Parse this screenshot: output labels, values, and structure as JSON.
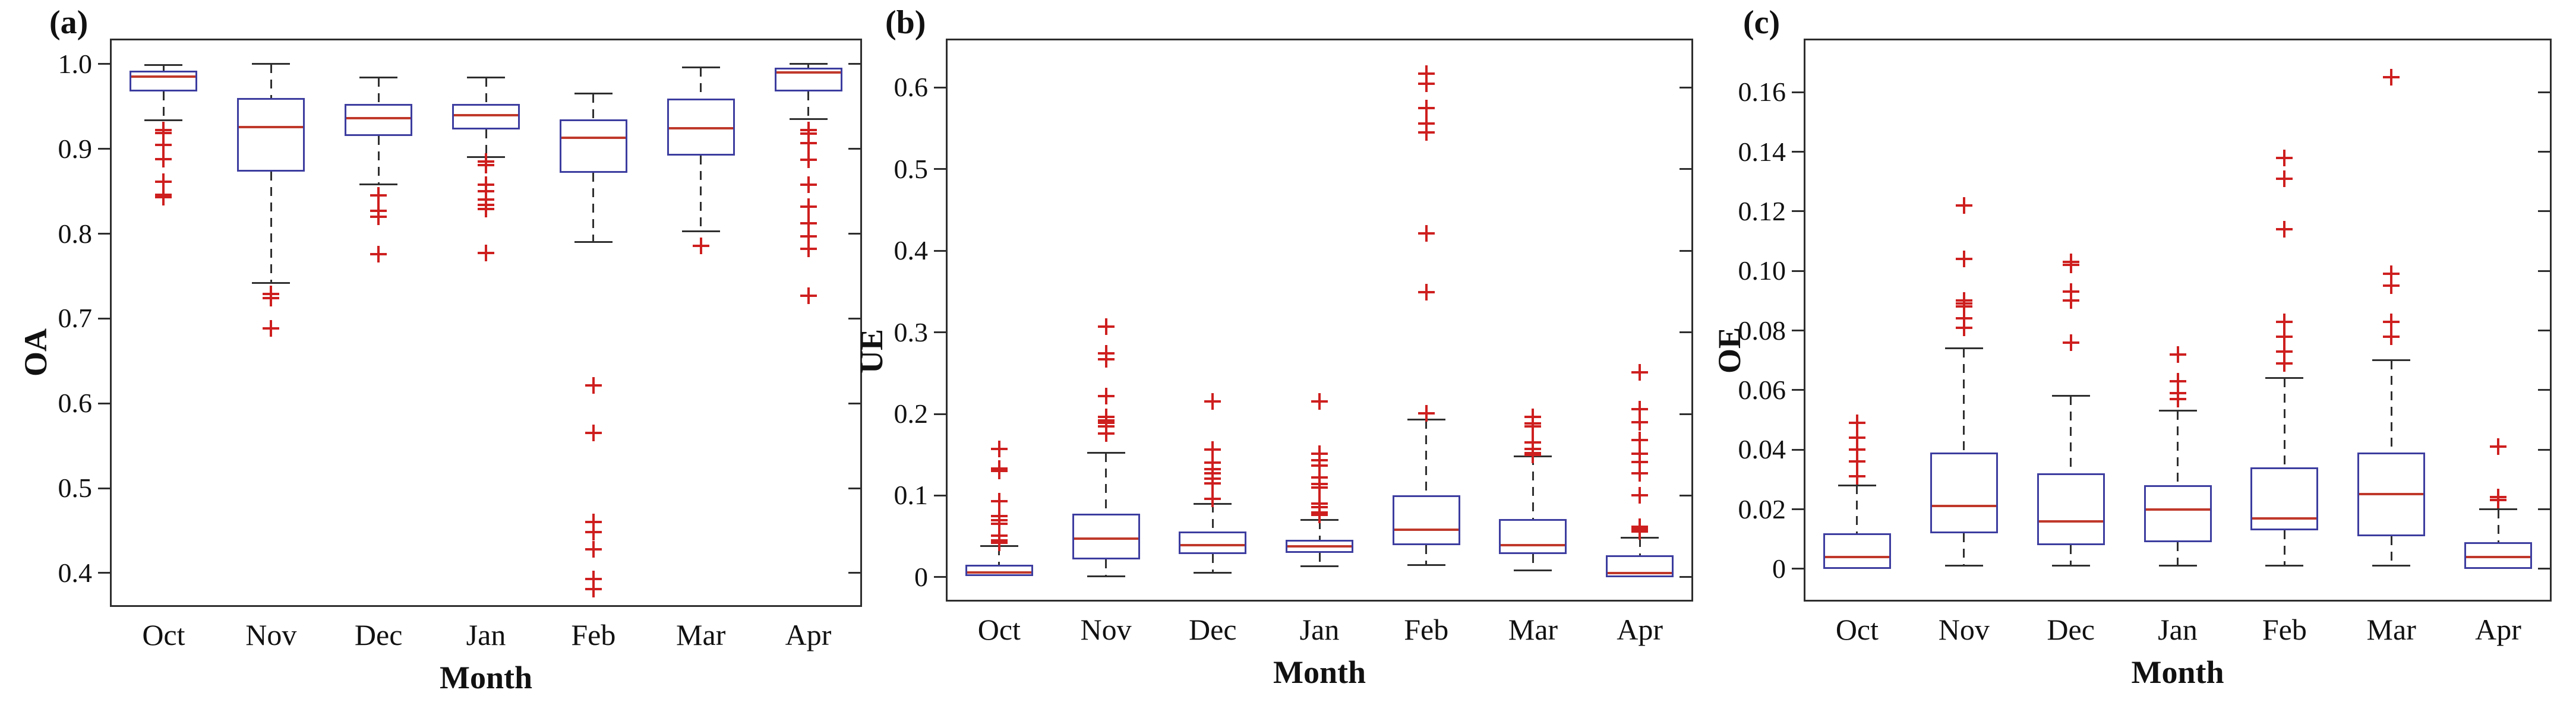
{
  "figure_title": "",
  "colors": {
    "box_edge": "#3d3da0",
    "median": "#c0392b",
    "outlier": "#ce1f1f",
    "axis": "#2e2e2e",
    "background": "#ffffff"
  },
  "chart_data": [
    {
      "type": "box",
      "panel_tag": "(a)",
      "xlabel": "Month",
      "ylabel": "OA",
      "ylim": [
        0.36,
        1.03
      ],
      "grid": false,
      "yticks": [
        {
          "v": 1.0,
          "label": "1.0"
        },
        {
          "v": 0.9,
          "label": "0.9"
        },
        {
          "v": 0.8,
          "label": "0.8"
        },
        {
          "v": 0.7,
          "label": "0.7"
        },
        {
          "v": 0.6,
          "label": "0.6"
        },
        {
          "v": 0.5,
          "label": "0.5"
        },
        {
          "v": 0.4,
          "label": "0.4"
        }
      ],
      "categories": [
        "Oct",
        "Nov",
        "Dec",
        "Jan",
        "Feb",
        "Mar",
        "Apr"
      ],
      "boxes": [
        {
          "month": "Oct",
          "whisker_low": 0.934,
          "q1": 0.968,
          "median": 0.985,
          "q3": 0.992,
          "whisker_high": 0.999,
          "outliers": [
            0.922,
            0.919,
            0.905,
            0.888,
            0.861,
            0.846,
            0.843
          ]
        },
        {
          "month": "Nov",
          "whisker_low": 0.742,
          "q1": 0.873,
          "median": 0.926,
          "q3": 0.96,
          "whisker_high": 1.0,
          "outliers": [
            0.729,
            0.724,
            0.688
          ]
        },
        {
          "month": "Dec",
          "whisker_low": 0.858,
          "q1": 0.915,
          "median": 0.936,
          "q3": 0.953,
          "whisker_high": 0.984,
          "outliers": [
            0.845,
            0.827,
            0.82,
            0.776
          ]
        },
        {
          "month": "Jan",
          "whisker_low": 0.89,
          "q1": 0.923,
          "median": 0.94,
          "q3": 0.953,
          "whisker_high": 0.984,
          "outliers": [
            0.885,
            0.881,
            0.858,
            0.85,
            0.84,
            0.834,
            0.829,
            0.777
          ]
        },
        {
          "month": "Feb",
          "whisker_low": 0.79,
          "q1": 0.872,
          "median": 0.913,
          "q3": 0.935,
          "whisker_high": 0.965,
          "outliers": [
            0.621,
            0.565,
            0.46,
            0.448,
            0.428,
            0.393,
            0.381
          ]
        },
        {
          "month": "Mar",
          "whisker_low": 0.803,
          "q1": 0.892,
          "median": 0.924,
          "q3": 0.959,
          "whisker_high": 0.996,
          "outliers": [
            0.786
          ]
        },
        {
          "month": "Apr",
          "whisker_low": 0.935,
          "q1": 0.968,
          "median": 0.99,
          "q3": 0.996,
          "whisker_high": 1.0,
          "outliers": [
            0.922,
            0.918,
            0.907,
            0.887,
            0.858,
            0.832,
            0.812,
            0.797,
            0.782,
            0.727
          ]
        }
      ]
    },
    {
      "type": "box",
      "panel_tag": "(b)",
      "xlabel": "Month",
      "ylabel": "UE",
      "ylim": [
        -0.03,
        0.66
      ],
      "grid": false,
      "yticks": [
        {
          "v": 0.6,
          "label": "0.6"
        },
        {
          "v": 0.5,
          "label": "0.5"
        },
        {
          "v": 0.4,
          "label": "0.4"
        },
        {
          "v": 0.3,
          "label": "0.3"
        },
        {
          "v": 0.2,
          "label": "0.2"
        },
        {
          "v": 0.1,
          "label": "0.1"
        },
        {
          "v": 0.0,
          "label": "0"
        }
      ],
      "categories": [
        "Oct",
        "Nov",
        "Dec",
        "Jan",
        "Feb",
        "Mar",
        "Apr"
      ],
      "boxes": [
        {
          "month": "Oct",
          "whisker_low": 0.0,
          "q1": 0.001,
          "median": 0.006,
          "q3": 0.015,
          "whisker_high": 0.038,
          "outliers": [
            0.042,
            0.045,
            0.051,
            0.065,
            0.07,
            0.075,
            0.093,
            0.13,
            0.133,
            0.157
          ]
        },
        {
          "month": "Nov",
          "whisker_low": 0.001,
          "q1": 0.022,
          "median": 0.047,
          "q3": 0.078,
          "whisker_high": 0.152,
          "outliers": [
            0.176,
            0.185,
            0.189,
            0.192,
            0.196,
            0.222,
            0.267,
            0.274,
            0.307
          ]
        },
        {
          "month": "Dec",
          "whisker_low": 0.005,
          "q1": 0.028,
          "median": 0.039,
          "q3": 0.056,
          "whisker_high": 0.09,
          "outliers": [
            0.096,
            0.115,
            0.121,
            0.127,
            0.132,
            0.14,
            0.156,
            0.215
          ]
        },
        {
          "month": "Jan",
          "whisker_low": 0.013,
          "q1": 0.03,
          "median": 0.038,
          "q3": 0.046,
          "whisker_high": 0.07,
          "outliers": [
            0.076,
            0.079,
            0.086,
            0.09,
            0.11,
            0.114,
            0.122,
            0.137,
            0.143,
            0.151,
            0.215
          ]
        },
        {
          "month": "Feb",
          "whisker_low": 0.015,
          "q1": 0.039,
          "median": 0.058,
          "q3": 0.1,
          "whisker_high": 0.193,
          "outliers": [
            0.201,
            0.349,
            0.421,
            0.545,
            0.556,
            0.575,
            0.605,
            0.617
          ]
        },
        {
          "month": "Mar",
          "whisker_low": 0.008,
          "q1": 0.028,
          "median": 0.039,
          "q3": 0.071,
          "whisker_high": 0.148,
          "outliers": [
            0.15,
            0.152,
            0.157,
            0.165,
            0.185,
            0.188,
            0.196
          ]
        },
        {
          "month": "Apr",
          "whisker_low": 0.0,
          "q1": 0.0,
          "median": 0.005,
          "q3": 0.027,
          "whisker_high": 0.048,
          "outliers": [
            0.056,
            0.059,
            0.062,
            0.1,
            0.127,
            0.141,
            0.151,
            0.168,
            0.19,
            0.206,
            0.251
          ]
        }
      ]
    },
    {
      "type": "box",
      "panel_tag": "(c)",
      "xlabel": "Month",
      "ylabel": "OE",
      "ylim": [
        -0.011,
        0.178
      ],
      "grid": false,
      "yticks": [
        {
          "v": 0.16,
          "label": "0.16"
        },
        {
          "v": 0.14,
          "label": "0.14"
        },
        {
          "v": 0.12,
          "label": "0.12"
        },
        {
          "v": 0.1,
          "label": "0.10"
        },
        {
          "v": 0.08,
          "label": "0.08"
        },
        {
          "v": 0.06,
          "label": "0.06"
        },
        {
          "v": 0.04,
          "label": "0.04"
        },
        {
          "v": 0.02,
          "label": "0.02"
        },
        {
          "v": 0.0,
          "label": "0"
        }
      ],
      "categories": [
        "Oct",
        "Nov",
        "Dec",
        "Jan",
        "Feb",
        "Mar",
        "Apr"
      ],
      "boxes": [
        {
          "month": "Oct",
          "whisker_low": 0.0,
          "q1": 0.0,
          "median": 0.004,
          "q3": 0.012,
          "whisker_high": 0.028,
          "outliers": [
            0.031,
            0.036,
            0.04,
            0.044,
            0.049
          ]
        },
        {
          "month": "Nov",
          "whisker_low": 0.001,
          "q1": 0.012,
          "median": 0.021,
          "q3": 0.039,
          "whisker_high": 0.074,
          "outliers": [
            0.081,
            0.084,
            0.088,
            0.089,
            0.09,
            0.104,
            0.122
          ]
        },
        {
          "month": "Dec",
          "whisker_low": 0.001,
          "q1": 0.008,
          "median": 0.016,
          "q3": 0.032,
          "whisker_high": 0.058,
          "outliers": [
            0.076,
            0.09,
            0.093,
            0.102,
            0.103
          ]
        },
        {
          "month": "Jan",
          "whisker_low": 0.001,
          "q1": 0.009,
          "median": 0.02,
          "q3": 0.028,
          "whisker_high": 0.053,
          "outliers": [
            0.057,
            0.059,
            0.063,
            0.072
          ]
        },
        {
          "month": "Feb",
          "whisker_low": 0.001,
          "q1": 0.013,
          "median": 0.017,
          "q3": 0.034,
          "whisker_high": 0.064,
          "outliers": [
            0.069,
            0.073,
            0.078,
            0.083,
            0.114,
            0.131,
            0.138
          ]
        },
        {
          "month": "Mar",
          "whisker_low": 0.001,
          "q1": 0.011,
          "median": 0.025,
          "q3": 0.039,
          "whisker_high": 0.07,
          "outliers": [
            0.078,
            0.083,
            0.095,
            0.099,
            0.165
          ]
        },
        {
          "month": "Apr",
          "whisker_low": 0.0,
          "q1": 0.0,
          "median": 0.004,
          "q3": 0.009,
          "whisker_high": 0.02,
          "outliers": [
            0.023,
            0.024,
            0.041
          ]
        }
      ]
    }
  ]
}
